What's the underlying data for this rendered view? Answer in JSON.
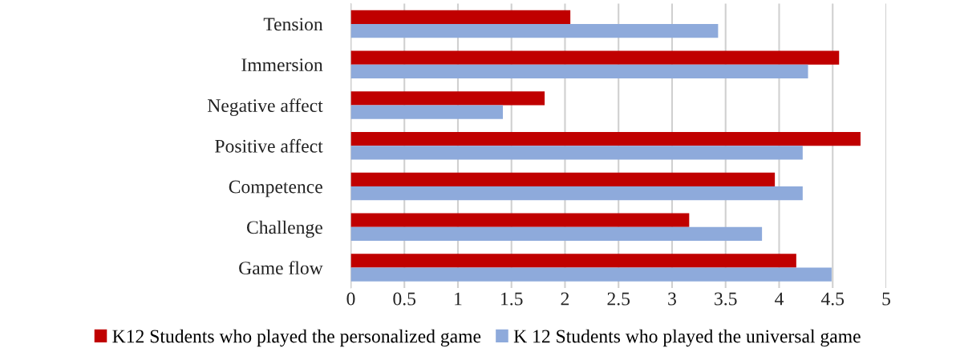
{
  "chart_data": {
    "type": "bar",
    "orientation": "horizontal",
    "categories": [
      "Tension",
      "Immersion",
      "Negative affect",
      "Positive affect",
      "Competence",
      "Challenge",
      "Game flow"
    ],
    "series": [
      {
        "name": "K12 Students who played the personalized game",
        "color": "#c00000",
        "values": [
          2.05,
          4.56,
          1.81,
          4.76,
          3.96,
          3.16,
          4.16
        ]
      },
      {
        "name": "K 12 Students who played the universal game",
        "color": "#8eaadb",
        "values": [
          3.43,
          4.27,
          1.42,
          4.22,
          4.22,
          3.84,
          4.49
        ]
      }
    ],
    "xlim": [
      0,
      5
    ],
    "xticks": [
      0,
      0.5,
      1,
      1.5,
      2,
      2.5,
      3,
      3.5,
      4,
      4.5,
      5
    ],
    "grid": "x",
    "legend": "bottom"
  }
}
